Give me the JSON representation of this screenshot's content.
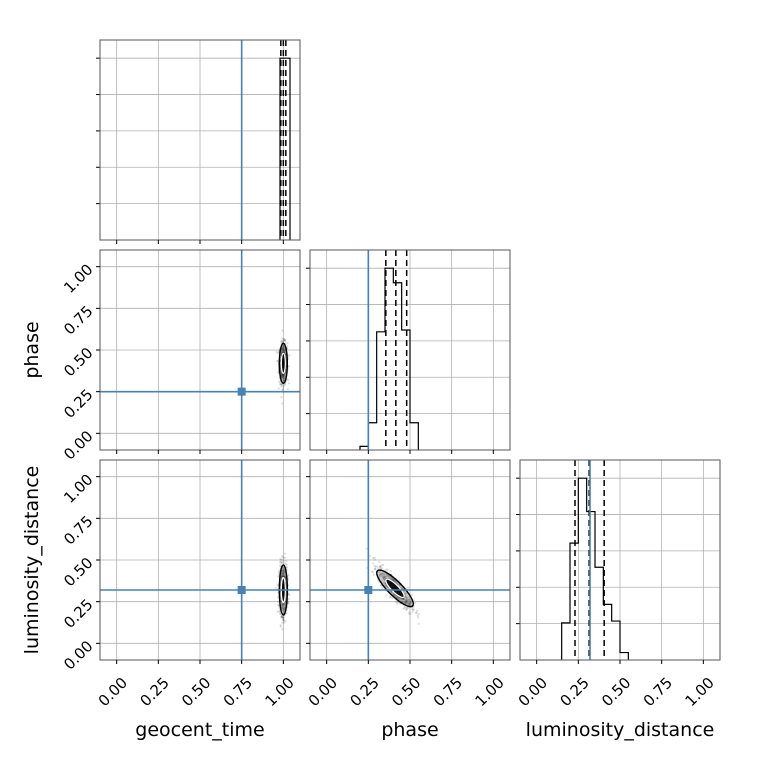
{
  "chart_data": {
    "type": "corner",
    "parameters": [
      "geocent_time",
      "phase",
      "luminosity_distance"
    ],
    "axis_labels": [
      "geocent_time",
      "phase",
      "luminosity_distance"
    ],
    "tick_labels": [
      "0.00",
      "0.25",
      "0.50",
      "0.75",
      "1.00"
    ],
    "axis_range": [
      -0.1,
      1.1
    ],
    "grid": true,
    "colors": {
      "truth": "#4682b4",
      "hist": "#000000",
      "quantile": "#000000",
      "density": "#000000"
    },
    "truths": {
      "geocent_time": 0.75,
      "phase": 0.25,
      "luminosity_distance": 0.32
    },
    "quantiles": {
      "geocent_time": [
        0.985,
        1.0,
        1.015
      ],
      "phase": [
        0.355,
        0.415,
        0.48
      ],
      "luminosity_distance": [
        0.23,
        0.315,
        0.405
      ]
    },
    "marginals": {
      "geocent_time": {
        "edges": [
          0.98,
          1.02,
          1.04
        ],
        "counts": [
          1.0,
          1.0
        ]
      },
      "phase": {
        "edges": [
          0.2,
          0.25,
          0.3,
          0.35,
          0.4,
          0.45,
          0.5,
          0.55
        ],
        "counts": [
          0.02,
          0.15,
          0.65,
          1.0,
          0.92,
          0.66,
          0.15
        ]
      },
      "luminosity_distance": {
        "edges": [
          0.15,
          0.2,
          0.25,
          0.3,
          0.35,
          0.4,
          0.45,
          0.5,
          0.55
        ],
        "counts": [
          0.2,
          0.63,
          0.98,
          0.8,
          0.5,
          0.3,
          0.21,
          0.04
        ]
      }
    },
    "panels_2d": [
      {
        "x": "geocent_time",
        "y": "phase",
        "center": [
          1.0,
          0.42
        ],
        "spread": [
          0.012,
          0.06
        ],
        "corr": 0
      },
      {
        "x": "geocent_time",
        "y": "luminosity_distance",
        "center": [
          1.0,
          0.32
        ],
        "spread": [
          0.012,
          0.075
        ],
        "corr": 0
      },
      {
        "x": "phase",
        "y": "luminosity_distance",
        "center": [
          0.41,
          0.33
        ],
        "spread": [
          0.05,
          0.06
        ],
        "corr": -0.85
      }
    ]
  }
}
